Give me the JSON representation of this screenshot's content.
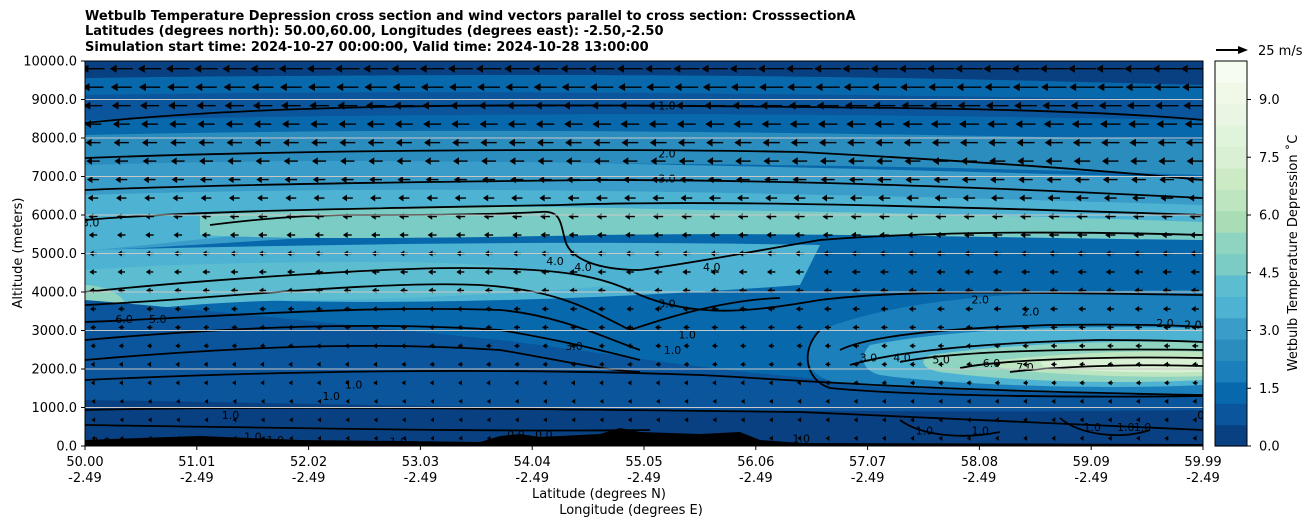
{
  "chart_data": {
    "type": "heatmap",
    "title_lines": [
      "Wetbulb Temperature Depression cross section and wind vectors parallel to cross section: CrosssectionA",
      "Latitudes (degrees north): 50.00,60.00, Longitudes (degrees east): -2.50,-2.50",
      "Simulation start time: 2024-10-27 00:00:00, Valid time: 2024-10-28 13:00:00"
    ],
    "xlabel_lat": "Latitude (degrees N)",
    "xlabel_lon": "Longitude (degrees E)",
    "ylabel": "Altitude (meters)",
    "x_ticks_lat": [
      "50.00",
      "51.01",
      "52.02",
      "53.03",
      "54.04",
      "55.05",
      "56.06",
      "57.07",
      "58.08",
      "59.09",
      "59.99"
    ],
    "x_ticks_lon": [
      "-2.49",
      "-2.49",
      "-2.49",
      "-2.49",
      "-2.49",
      "-2.49",
      "-2.49",
      "-2.49",
      "-2.49",
      "-2.49",
      "-2.49"
    ],
    "y_ticks": [
      "0.0",
      "1000.0",
      "2000.0",
      "3000.0",
      "4000.0",
      "5000.0",
      "6000.0",
      "7000.0",
      "8000.0",
      "9000.0",
      "10000.0"
    ],
    "ylim": [
      0,
      10000
    ],
    "xlim": [
      50.0,
      59.99
    ],
    "grid": "horizontal",
    "colorbar": {
      "label": "Wetbulb Temperature Depression ˚C",
      "ticks": [
        "0.0",
        "1.5",
        "3.0",
        "4.5",
        "6.0",
        "7.5",
        "9.0"
      ],
      "range": [
        0,
        10
      ],
      "colors": [
        "#084081",
        "#0a559c",
        "#0868ac",
        "#1a7fba",
        "#2b8cbe",
        "#3a9cc8",
        "#4eb3d3",
        "#5dbdd0",
        "#7bccc4",
        "#8fd4c1",
        "#a8ddb5",
        "#bde5c0",
        "#ccebc5",
        "#daf0d4",
        "#e0f3db",
        "#eaf6e4",
        "#f0f9e8",
        "#f7fcf0"
      ]
    },
    "wind_key_label": "25 m/s",
    "contour_labels": [
      {
        "text": "1.0",
        "lat": 55.2,
        "alt": 8850
      },
      {
        "text": "2.0",
        "lat": 55.2,
        "alt": 7600
      },
      {
        "text": "3.0",
        "lat": 55.2,
        "alt": 6950
      },
      {
        "text": "4.0",
        "lat": 54.2,
        "alt": 4800
      },
      {
        "text": "4.0",
        "lat": 54.45,
        "alt": 4650
      },
      {
        "text": "4.0",
        "lat": 55.6,
        "alt": 4650
      },
      {
        "text": "3.0",
        "lat": 55.2,
        "alt": 3700
      },
      {
        "text": "3.0",
        "lat": 54.37,
        "alt": 2600
      },
      {
        "text": "1.0",
        "lat": 55.38,
        "alt": 2900
      },
      {
        "text": "1.0",
        "lat": 55.25,
        "alt": 2500
      },
      {
        "text": "2.0",
        "lat": 58.0,
        "alt": 3800
      },
      {
        "text": "2.0",
        "lat": 58.45,
        "alt": 3500
      },
      {
        "text": "2.0",
        "lat": 59.65,
        "alt": 3200
      },
      {
        "text": "2.0",
        "lat": 59.9,
        "alt": 3150
      },
      {
        "text": "3.0",
        "lat": 57.0,
        "alt": 2300
      },
      {
        "text": "4.0",
        "lat": 57.3,
        "alt": 2300
      },
      {
        "text": "5.0",
        "lat": 57.65,
        "alt": 2250
      },
      {
        "text": "6.0",
        "lat": 58.1,
        "alt": 2150
      },
      {
        "text": "7.0",
        "lat": 58.4,
        "alt": 2050
      },
      {
        "text": "6.0",
        "lat": 50.35,
        "alt": 3300
      },
      {
        "text": "5.0",
        "lat": 50.65,
        "alt": 3300
      },
      {
        "text": "3.0",
        "lat": 50.05,
        "alt": 5800
      },
      {
        "text": "1.0",
        "lat": 52.4,
        "alt": 1600
      },
      {
        "text": "1.0",
        "lat": 52.2,
        "alt": 1300
      },
      {
        "text": "1.0",
        "lat": 51.3,
        "alt": 800
      },
      {
        "text": "1.0",
        "lat": 51.5,
        "alt": 250
      },
      {
        "text": "1.0",
        "lat": 51.7,
        "alt": 150
      },
      {
        "text": "1.0",
        "lat": 50.15,
        "alt": 120
      },
      {
        "text": "1.0",
        "lat": 52.8,
        "alt": 120
      },
      {
        "text": "0.0",
        "lat": 53.85,
        "alt": 300
      },
      {
        "text": "0.0",
        "lat": 54.1,
        "alt": 300
      },
      {
        "text": "0.0",
        "lat": 54.82,
        "alt": 300
      },
      {
        "text": "1.0",
        "lat": 56.4,
        "alt": 200
      },
      {
        "text": "1.0",
        "lat": 57.5,
        "alt": 400
      },
      {
        "text": "1.0",
        "lat": 58.0,
        "alt": 400
      },
      {
        "text": "1.0",
        "lat": 59.0,
        "alt": 500
      },
      {
        "text": "1.0",
        "lat": 59.3,
        "alt": 500
      },
      {
        "text": "1.0",
        "lat": 59.45,
        "alt": 500
      },
      {
        "text": "0",
        "lat": 59.97,
        "alt": 800
      }
    ]
  }
}
